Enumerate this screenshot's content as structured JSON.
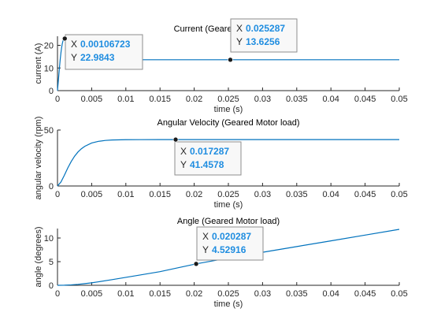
{
  "figure": {
    "background": "#ffffff"
  },
  "colors": {
    "line": "#0072bd",
    "axis": "#262626",
    "tip_value": "#1f8de0",
    "tip_label": "#262626",
    "tip_border": "#8e8e8e",
    "tip_fill": "#f8f8f8",
    "marker": "#1a1a1a"
  },
  "tip_keys": {
    "x": "X",
    "y": "Y"
  },
  "chart_data": [
    {
      "type": "line",
      "title": "Current (Geared Motor load)",
      "xlabel": "time (s)",
      "ylabel": "current (A)",
      "xlim": [
        0,
        0.05
      ],
      "ylim": [
        0,
        24
      ],
      "xticks": [
        "0",
        "0.005",
        "0.01",
        "0.015",
        "0.02",
        "0.025",
        "0.03",
        "0.035",
        "0.04",
        "0.045",
        "0.05"
      ],
      "yticks": [
        {
          "v": 0,
          "label": "0"
        },
        {
          "v": 10,
          "label": "10"
        },
        {
          "v": 20,
          "label": "20"
        }
      ],
      "grid": false,
      "series": [
        {
          "x": [
            0,
            0.0001,
            0.0002,
            0.0003,
            0.0004,
            0.0005,
            0.0006,
            0.0007,
            0.0008,
            0.0009,
            0.00106723,
            0.0012,
            0.0014,
            0.0016,
            0.0018,
            0.002,
            0.0025,
            0.003,
            0.004,
            0.005,
            0.01,
            0.02,
            0.025287,
            0.03,
            0.04,
            0.05
          ],
          "y": [
            0,
            3.5,
            7,
            10.5,
            13.8,
            16.6,
            18.9,
            20.7,
            21.9,
            22.7,
            22.98,
            22.8,
            22.0,
            20.9,
            19.6,
            18.4,
            16.2,
            14.9,
            14.0,
            13.75,
            13.63,
            13.626,
            13.6256,
            13.6256,
            13.6256,
            13.6256
          ]
        }
      ],
      "datatips": [
        {
          "x": 0.00106723,
          "y": 22.9843,
          "x_label": "0.00106723",
          "y_label": "22.9843"
        },
        {
          "x": 0.025287,
          "y": 13.6256,
          "x_label": "0.025287",
          "y_label": "13.6256"
        }
      ]
    },
    {
      "type": "line",
      "title": "Angular Velocity (Geared Motor load)",
      "xlabel": "time (s)",
      "ylabel": "angular velocity (rpm)",
      "xlim": [
        0,
        0.05
      ],
      "ylim": [
        0,
        50
      ],
      "xticks": [
        "0",
        "0.005",
        "0.01",
        "0.015",
        "0.02",
        "0.025",
        "0.03",
        "0.035",
        "0.04",
        "0.045",
        "0.05"
      ],
      "yticks": [
        {
          "v": 0,
          "label": "0"
        },
        {
          "v": 50,
          "label": "50"
        }
      ],
      "grid": false,
      "series": [
        {
          "x": [
            0,
            0.0005,
            0.001,
            0.0015,
            0.002,
            0.0025,
            0.003,
            0.0035,
            0.004,
            0.005,
            0.006,
            0.007,
            0.008,
            0.01,
            0.012,
            0.015,
            0.017287,
            0.02,
            0.03,
            0.04,
            0.05
          ],
          "y": [
            0,
            3.5,
            9.5,
            16,
            21.8,
            26.6,
            30.4,
            33.3,
            35.5,
            38.4,
            39.9,
            40.7,
            41.1,
            41.37,
            41.43,
            41.455,
            41.4578,
            41.458,
            41.458,
            41.458,
            41.458
          ]
        }
      ],
      "datatips": [
        {
          "x": 0.017287,
          "y": 41.4578,
          "x_label": "0.017287",
          "y_label": "41.4578"
        }
      ]
    },
    {
      "type": "line",
      "title": "Angle (Geared Motor load)",
      "xlabel": "time (s)",
      "ylabel": "angle (degrees)",
      "xlim": [
        0,
        0.05
      ],
      "ylim": [
        0,
        12
      ],
      "xticks": [
        "0",
        "0.005",
        "0.01",
        "0.015",
        "0.02",
        "0.025",
        "0.03",
        "0.035",
        "0.04",
        "0.045",
        "0.05"
      ],
      "yticks": [
        {
          "v": 0,
          "label": "0"
        },
        {
          "v": 5,
          "label": "5"
        },
        {
          "v": 10,
          "label": "10"
        }
      ],
      "grid": false,
      "series": [
        {
          "x": [
            0,
            0.001,
            0.002,
            0.003,
            0.004,
            0.005,
            0.006,
            0.008,
            0.01,
            0.012,
            0.015,
            0.020287,
            0.025,
            0.03,
            0.035,
            0.04,
            0.045,
            0.05
          ],
          "y": [
            0,
            0.02,
            0.09,
            0.2,
            0.35,
            0.52,
            0.74,
            1.2,
            1.68,
            2.16,
            2.89,
            4.52916,
            5.77,
            6.98,
            8.19,
            9.4,
            10.62,
            11.83
          ]
        }
      ],
      "datatips": [
        {
          "x": 0.020287,
          "y": 4.52916,
          "x_label": "0.020287",
          "y_label": "4.52916"
        }
      ]
    }
  ]
}
